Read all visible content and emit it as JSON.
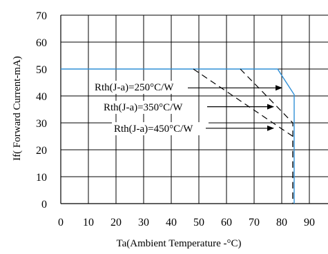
{
  "chart_data": {
    "type": "line",
    "xlabel": "Ta(Ambient Temperature -°C)",
    "ylabel": "If( Forward Current-mA)",
    "xlim": [
      0,
      97
    ],
    "ylim": [
      0,
      70
    ],
    "xticks": [
      0,
      10,
      20,
      30,
      40,
      50,
      60,
      70,
      80,
      90
    ],
    "yticks": [
      0,
      10,
      20,
      30,
      40,
      50,
      60,
      70
    ],
    "grid": true,
    "colors": {
      "blue_curve": "#2f8fd6",
      "black": "#000000"
    },
    "series": [
      {
        "name": "",
        "style": "solid",
        "color": "#2f8fd6",
        "x": [
          0,
          78.5,
          84.5,
          84.5
        ],
        "y": [
          50,
          50,
          40.5,
          0
        ]
      },
      {
        "name": "",
        "style": "dashed",
        "color": "#000000",
        "x": [
          65,
          84,
          84
        ],
        "y": [
          50,
          30,
          0
        ]
      },
      {
        "name": "",
        "style": "dashed",
        "color": "#000000",
        "x": [
          48,
          84,
          84
        ],
        "y": [
          50,
          25,
          0
        ]
      }
    ],
    "annotations": [
      {
        "text": "Rth(J-a)=250°C/W",
        "arrow_to": [
          80,
          43
        ]
      },
      {
        "text": "Rth(J-a)=350°C/W",
        "arrow_to": [
          77,
          36
        ]
      },
      {
        "text": "Rth(J-a)=450°C/W",
        "arrow_to": [
          77,
          28
        ]
      }
    ]
  }
}
